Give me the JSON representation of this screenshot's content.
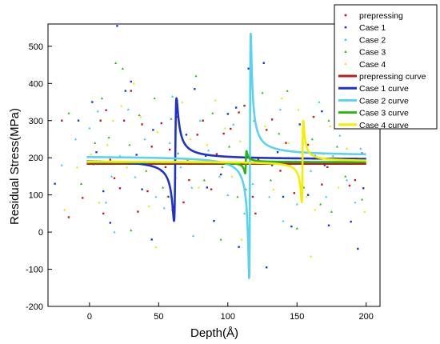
{
  "chart_data": {
    "type": "scatter",
    "xlabel": "Depth(Å)",
    "ylabel": "Residual Stress(MPa)",
    "xlim": [
      -30,
      210
    ],
    "ylim": [
      -200,
      560
    ],
    "xticks": [
      0,
      50,
      100,
      150,
      200
    ],
    "yticks": [
      -200,
      -100,
      0,
      100,
      200,
      300,
      400,
      500
    ],
    "legend_position": "top-right",
    "grid": false,
    "scatter_series": [
      {
        "name": "prepressing",
        "color": "#b22222",
        "marker": "square",
        "points": [
          [
            -5,
            92
          ],
          [
            3,
            183
          ],
          [
            8,
            300
          ],
          [
            12,
            328
          ],
          [
            15,
            195
          ],
          [
            18,
            145
          ],
          [
            22,
            118
          ],
          [
            25,
            300
          ],
          [
            30,
            380
          ],
          [
            35,
            55
          ],
          [
            38,
            290
          ],
          [
            42,
            110
          ],
          [
            45,
            230
          ],
          [
            52,
            293
          ],
          [
            55,
            175
          ],
          [
            58,
            222
          ],
          [
            63,
            310
          ],
          [
            68,
            80
          ],
          [
            72,
            140
          ],
          [
            78,
            262
          ],
          [
            82,
            300
          ],
          [
            88,
            115
          ],
          [
            92,
            210
          ],
          [
            97,
            265
          ],
          [
            102,
            278
          ],
          [
            108,
            322
          ],
          [
            112,
            340
          ],
          [
            118,
            95
          ],
          [
            122,
            195
          ],
          [
            128,
            275
          ],
          [
            132,
            303
          ],
          [
            138,
            165
          ],
          [
            142,
            240
          ],
          [
            148,
            105
          ],
          [
            152,
            185
          ],
          [
            158,
            235
          ],
          [
            162,
            310
          ],
          [
            168,
            128
          ],
          [
            172,
            175
          ],
          [
            178,
            365
          ],
          [
            182,
            305
          ],
          [
            188,
            125
          ],
          [
            192,
            140
          ],
          [
            197,
            212
          ],
          [
            -15,
            40
          ],
          [
            -20,
            300
          ],
          [
            10,
            50
          ],
          [
            60,
            60
          ],
          [
            120,
            50
          ],
          [
            185,
            350
          ]
        ]
      },
      {
        "name": "Case 1",
        "color": "#1a3cc8",
        "marker": "square",
        "points": [
          [
            -8,
            300
          ],
          [
            2,
            350
          ],
          [
            5,
            215
          ],
          [
            10,
            110
          ],
          [
            15,
            25
          ],
          [
            20,
            555
          ],
          [
            26,
            380
          ],
          [
            30,
            405
          ],
          [
            34,
            208
          ],
          [
            38,
            115
          ],
          [
            46,
            275
          ],
          [
            52,
            165
          ],
          [
            57,
            95
          ],
          [
            62,
            145
          ],
          [
            70,
            262
          ],
          [
            76,
            385
          ],
          [
            84,
            205
          ],
          [
            90,
            30
          ],
          [
            95,
            155
          ],
          [
            100,
            318
          ],
          [
            106,
            335
          ],
          [
            110,
            180
          ],
          [
            115,
            440
          ],
          [
            121,
            200
          ],
          [
            126,
            455
          ],
          [
            132,
            180
          ],
          [
            136,
            215
          ],
          [
            140,
            95
          ],
          [
            146,
            15
          ],
          [
            152,
            290
          ],
          [
            158,
            100
          ],
          [
            163,
            205
          ],
          [
            168,
            325
          ],
          [
            173,
            18
          ],
          [
            178,
            465
          ],
          [
            184,
            290
          ],
          [
            189,
            28
          ],
          [
            194,
            -45
          ],
          [
            198,
            118
          ],
          [
            108,
            -40
          ],
          [
            128,
            -95
          ],
          [
            170,
            180
          ],
          [
            -25,
            130
          ],
          [
            45,
            -20
          ],
          [
            85,
            120
          ]
        ]
      },
      {
        "name": "Case 2",
        "color": "#46c8e6",
        "marker": "triangle",
        "points": [
          [
            -10,
            250
          ],
          [
            0,
            280
          ],
          [
            6,
            325
          ],
          [
            12,
            80
          ],
          [
            16,
            150
          ],
          [
            22,
            205
          ],
          [
            28,
            330
          ],
          [
            33,
            148
          ],
          [
            40,
            250
          ],
          [
            48,
            95
          ],
          [
            54,
            65
          ],
          [
            60,
            365
          ],
          [
            66,
            175
          ],
          [
            74,
            120
          ],
          [
            80,
            300
          ],
          [
            86,
            220
          ],
          [
            94,
            150
          ],
          [
            100,
            100
          ],
          [
            104,
            290
          ],
          [
            112,
            50
          ],
          [
            118,
            130
          ],
          [
            124,
            250
          ],
          [
            130,
            95
          ],
          [
            138,
            330
          ],
          [
            145,
            180
          ],
          [
            150,
            75
          ],
          [
            156,
            245
          ],
          [
            160,
            165
          ],
          [
            166,
            350
          ],
          [
            171,
            95
          ],
          [
            176,
            205
          ],
          [
            181,
            260
          ],
          [
            186,
            140
          ],
          [
            192,
            80
          ],
          [
            196,
            225
          ],
          [
            18,
            0
          ],
          [
            75,
            -10
          ],
          [
            140,
            30
          ],
          [
            -20,
            180
          ],
          [
            58,
            240
          ]
        ]
      },
      {
        "name": "Case 3",
        "color": "#3cb41e",
        "marker": "triangle",
        "points": [
          [
            -6,
            130
          ],
          [
            4,
            240
          ],
          [
            9,
            360
          ],
          [
            14,
            255
          ],
          [
            19,
            455
          ],
          [
            24,
            440
          ],
          [
            29,
            235
          ],
          [
            36,
            315
          ],
          [
            41,
            165
          ],
          [
            47,
            360
          ],
          [
            53,
            120
          ],
          [
            59,
            305
          ],
          [
            64,
            212
          ],
          [
            71,
            195
          ],
          [
            77,
            420
          ],
          [
            83,
            140
          ],
          [
            89,
            320
          ],
          [
            96,
            175
          ],
          [
            101,
            230
          ],
          [
            107,
            95
          ],
          [
            113,
            115
          ],
          [
            119,
            300
          ],
          [
            125,
            375
          ],
          [
            131,
            140
          ],
          [
            137,
            265
          ],
          [
            143,
            380
          ],
          [
            149,
            190
          ],
          [
            155,
            120
          ],
          [
            161,
            250
          ],
          [
            167,
            75
          ],
          [
            173,
            300
          ],
          [
            179,
            230
          ],
          [
            185,
            150
          ],
          [
            191,
            195
          ],
          [
            197,
            88
          ],
          [
            -15,
            320
          ],
          [
            30,
            5
          ],
          [
            95,
            -20
          ],
          [
            150,
            10
          ],
          [
            175,
            55
          ]
        ]
      },
      {
        "name": "Case 4",
        "color": "#e6e619",
        "marker": "triangle",
        "points": [
          [
            -9,
            175
          ],
          [
            1,
            210
          ],
          [
            7,
            80
          ],
          [
            13,
            235
          ],
          [
            17,
            300
          ],
          [
            23,
            340
          ],
          [
            27,
            175
          ],
          [
            32,
            400
          ],
          [
            37,
            310
          ],
          [
            43,
            70
          ],
          [
            49,
            270
          ],
          [
            56,
            95
          ],
          [
            61,
            185
          ],
          [
            67,
            350
          ],
          [
            73,
            250
          ],
          [
            79,
            120
          ],
          [
            85,
            235
          ],
          [
            91,
            355
          ],
          [
            98,
            280
          ],
          [
            103,
            150
          ],
          [
            109,
            245
          ],
          [
            116,
            40
          ],
          [
            122,
            200
          ],
          [
            127,
            285
          ],
          [
            133,
            115
          ],
          [
            139,
            360
          ],
          [
            144,
            240
          ],
          [
            151,
            330
          ],
          [
            157,
            95
          ],
          [
            163,
            60
          ],
          [
            169,
            210
          ],
          [
            174,
            285
          ],
          [
            180,
            120
          ],
          [
            186,
            225
          ],
          [
            193,
            355
          ],
          [
            199,
            55
          ],
          [
            -18,
            60
          ],
          [
            48,
            -40
          ],
          [
            110,
            -20
          ],
          [
            160,
            -65
          ]
        ]
      }
    ],
    "curve_series": [
      {
        "name": "prepressing curve",
        "color": "#b22222",
        "baseline": 184,
        "features": []
      },
      {
        "name": "Case 1 curve",
        "color": "#1e32c8",
        "baseline": 195,
        "features": [
          {
            "x0": 62,
            "amplitude": 165,
            "gamma": 0.9
          }
        ]
      },
      {
        "name": "Case 2 curve",
        "color": "#5ad2f0",
        "baseline": 205,
        "features": [
          {
            "x0": 116,
            "amplitude": 330,
            "gamma": 0.55
          }
        ]
      },
      {
        "name": "Case 3 curve",
        "color": "#2db414",
        "baseline": 188,
        "features": [
          {
            "x0": 113,
            "amplitude": 30,
            "gamma": 0.5
          }
        ]
      },
      {
        "name": "Case 4 curve",
        "color": "#f0f000",
        "baseline": 190,
        "features": [
          {
            "x0": 154,
            "amplitude": 110,
            "gamma": 0.55
          }
        ]
      }
    ]
  }
}
